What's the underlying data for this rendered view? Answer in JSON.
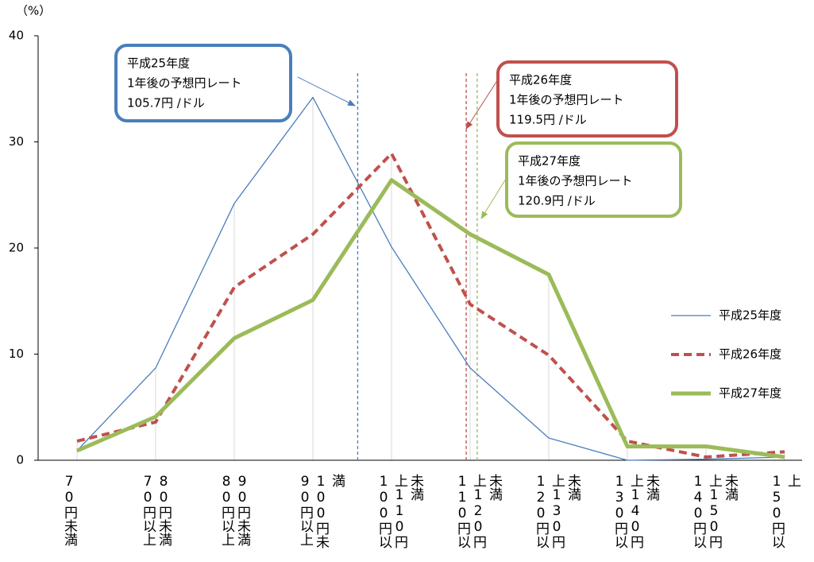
{
  "chart_data": {
    "type": "line",
    "y_unit": "（%）",
    "categories": [
      "70円未満",
      "70円以上80円未満",
      "80円以上90円未満",
      "90円以上100円未満",
      "100円以上110円未満",
      "110円以上120円未満",
      "120円以上130円未満",
      "130円以上140円未満",
      "140円以上150円未満",
      "150円以上"
    ],
    "series": [
      {
        "name": "平成25年度",
        "color": "#4a7ebb",
        "dash": false,
        "width": 1.3,
        "values": [
          0.9,
          8.7,
          24.2,
          34.2,
          20.1,
          8.7,
          2.1,
          0,
          0.1,
          0.3
        ]
      },
      {
        "name": "平成26年度",
        "color": "#c0504d",
        "dash": true,
        "width": 4,
        "values": [
          1.8,
          3.6,
          16.3,
          21.3,
          28.9,
          14.7,
          9.9,
          1.8,
          0.3,
          0.8
        ]
      },
      {
        "name": "平成27年度",
        "color": "#9bbb59",
        "dash": false,
        "width": 5,
        "values": [
          0.9,
          4.1,
          11.5,
          15.1,
          26.4,
          21.3,
          17.5,
          1.3,
          1.3,
          0.3
        ]
      }
    ],
    "ylim": [
      0,
      40
    ],
    "yticks": [
      0,
      10,
      20,
      30,
      40
    ],
    "annotations": [
      {
        "title": "平成25年度",
        "text": "1年後の予想円レート",
        "rate": {
          "value": 105.7,
          "label": "105.7円 /ドル"
        },
        "color": "#4a7ebb"
      },
      {
        "title": "平成26年度",
        "text": "1年後の予想円レート",
        "rate": {
          "value": 119.5,
          "label": "119.5円 /ドル"
        },
        "color": "#c0504d"
      },
      {
        "title": "平成27年度",
        "text": "1年後の予想円レート",
        "rate": {
          "value": 120.9,
          "label": "120.9円 /ドル"
        },
        "color": "#9bbb59"
      }
    ]
  }
}
